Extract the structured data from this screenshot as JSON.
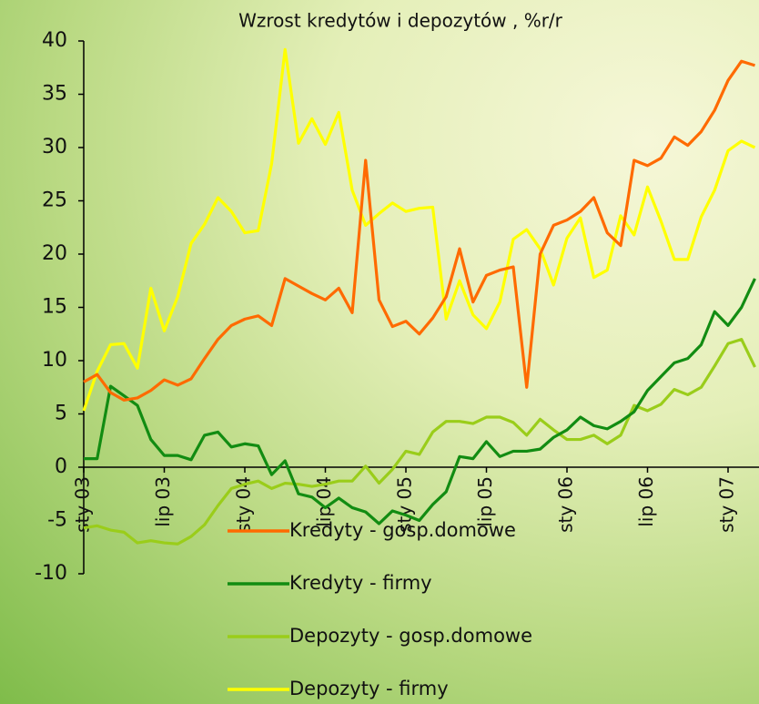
{
  "chart_data": {
    "type": "line",
    "title": "Wzrost kredytów i depozytów , %r/r",
    "categories": [
      "sty 03",
      null,
      null,
      null,
      null,
      null,
      "lip 03",
      null,
      null,
      null,
      null,
      null,
      "sty 04",
      null,
      null,
      null,
      null,
      null,
      "lip 04",
      null,
      null,
      null,
      null,
      null,
      "sty 05",
      null,
      null,
      null,
      null,
      null,
      "lip 05",
      null,
      null,
      null,
      null,
      null,
      "sty 06",
      null,
      null,
      null,
      null,
      null,
      "lip 06",
      null,
      null,
      null,
      null,
      null,
      "sty 07",
      null,
      null
    ],
    "series": [
      {
        "name": "Kredyty - gosp.domowe",
        "color": "#ff6a00",
        "values": [
          8,
          8.7,
          7,
          6.3,
          6.5,
          7.2,
          8.2,
          7.7,
          8.3,
          10.2,
          12,
          13.3,
          13.9,
          14.2,
          13.3,
          17.7,
          17,
          16.3,
          15.7,
          16.8,
          14.5,
          28.8,
          15.7,
          13.2,
          13.7,
          12.5,
          14,
          16,
          20.5,
          15.5,
          18,
          18.5,
          18.8,
          7.5,
          20,
          22.7,
          23.2,
          24,
          25.3,
          22,
          20.8,
          28.8,
          28.3,
          29,
          31,
          30.2,
          31.5,
          33.5,
          36.3,
          38.1,
          37.7
        ]
      },
      {
        "name": "Kredyty - firmy",
        "color": "#128c12",
        "values": [
          0.8,
          0.8,
          7.6,
          6.7,
          5.8,
          2.6,
          1.1,
          1.1,
          0.7,
          3,
          3.3,
          1.9,
          2.2,
          2,
          -0.7,
          0.6,
          -2.5,
          -2.8,
          -3.8,
          -2.9,
          -3.8,
          -4.2,
          -5.3,
          -4.1,
          -4.5,
          -5,
          -3.5,
          -2.3,
          1,
          0.8,
          2.4,
          1,
          1.5,
          1.5,
          1.7,
          2.8,
          3.5,
          4.7,
          3.9,
          3.6,
          4.3,
          5.2,
          7.2,
          8.5,
          9.8,
          10.2,
          11.5,
          14.6,
          13.3,
          15,
          17.7
        ]
      },
      {
        "name": "Depozyty - gosp.domowe",
        "color": "#9acd1a",
        "values": [
          -5.7,
          -5.5,
          -5.9,
          -6.1,
          -7.1,
          -6.9,
          -7.1,
          -7.2,
          -6.5,
          -5.4,
          -3.6,
          -2,
          -1.6,
          -1.3,
          -2,
          -1.5,
          -1.6,
          -1.8,
          -1.6,
          -1.3,
          -1.3,
          0.1,
          -1.5,
          -0.2,
          1.5,
          1.2,
          3.3,
          4.3,
          4.3,
          4.1,
          4.7,
          4.7,
          4.2,
          3,
          4.5,
          3.5,
          2.6,
          2.6,
          3,
          2.2,
          3,
          5.8,
          5.3,
          5.9,
          7.3,
          6.8,
          7.5,
          9.5,
          11.6,
          12,
          9.4
        ]
      },
      {
        "name": "Depozyty - firmy",
        "color": "#ffff00",
        "values": [
          5.3,
          9,
          11.5,
          11.6,
          9.3,
          16.8,
          12.8,
          16,
          21,
          22.8,
          25.3,
          24,
          22,
          22.2,
          28.5,
          39.2,
          30.4,
          32.7,
          30.3,
          33.3,
          26,
          22.7,
          23.8,
          24.8,
          24,
          24.3,
          24.4,
          13.9,
          17.5,
          14.3,
          13,
          15.5,
          21.4,
          22.3,
          20.5,
          17.1,
          21.5,
          23.4,
          17.8,
          18.5,
          23.6,
          21.8,
          26.3,
          23.1,
          19.5,
          19.5,
          23.5,
          26,
          29.7,
          30.6,
          30
        ]
      }
    ],
    "ylim": [
      -10,
      40
    ],
    "yticks": [
      -10,
      -5,
      0,
      5,
      10,
      15,
      20,
      25,
      30,
      35,
      40
    ],
    "grid": false,
    "legend": "bottom"
  }
}
